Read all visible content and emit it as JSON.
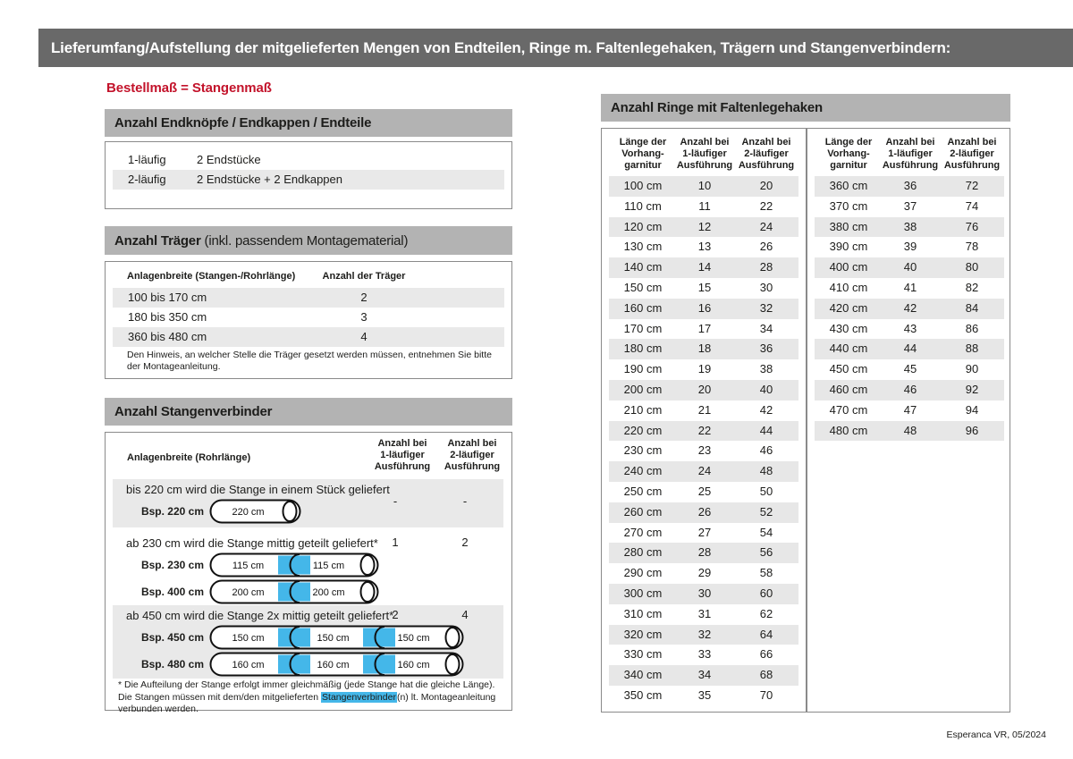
{
  "title_bar": "Lieferumfang/Aufstellung der mitgelieferten Mengen von Endteilen, Ringe m. Faltenlegehaken, Trägern und Stangenverbindern:",
  "subtitle": "Bestellmaß = Stangenmaß",
  "footer": "Esperanca VR, 05/2024",
  "colors": {
    "title_bar_bg": "#696969",
    "section_bar_bg": "#b3b3b3",
    "stripe": "#e9e9e9",
    "accent_red": "#c3132b",
    "connector_blue": "#44b7e9"
  },
  "endteile": {
    "title": "Anzahl Endknöpfe / Endkappen / Endteile",
    "rows": [
      [
        "1-läufig",
        "2 Endstücke"
      ],
      [
        "2-läufig",
        "2 Endstücke + 2 Endkappen"
      ]
    ]
  },
  "traeger": {
    "title_bold": "Anzahl Träger",
    "title_normal": " (inkl. passendem Montagematerial)",
    "col1": "Anlagenbreite (Stangen-/Rohrlänge)",
    "col2": "Anzahl der Träger",
    "rows": [
      [
        "100 bis 170 cm",
        "2"
      ],
      [
        "180 bis 350 cm",
        "3"
      ],
      [
        "360 bis 480 cm",
        "4"
      ]
    ],
    "note": "Den Hinweis, an welcher Stelle die Träger gesetzt werden müssen, entnehmen Sie bitte der Montageanleitung."
  },
  "stangenverbinder": {
    "title": "Anzahl Stangenverbinder",
    "col1": "Anlagenbreite (Rohrlänge)",
    "col_v1": "Anzahl bei\n1-läufiger\nAusführung",
    "col_v2": "Anzahl bei\n2-läufiger\nAusführung",
    "rows": [
      {
        "text": "bis 220 cm wird die Stange in einem Stück geliefert",
        "v1": "-",
        "v2": "-",
        "examples": [
          {
            "label": "Bsp. 220 cm",
            "segments": [
              "220 cm"
            ]
          }
        ]
      },
      {
        "text": "ab 230 cm wird die Stange mittig geteilt geliefert*",
        "v1": "1",
        "v2": "2",
        "examples": [
          {
            "label": "Bsp. 230 cm",
            "segments": [
              "115 cm",
              "115 cm"
            ]
          },
          {
            "label": "Bsp. 400 cm",
            "segments": [
              "200 cm",
              "200 cm"
            ]
          }
        ]
      },
      {
        "text": "ab 450 cm wird die Stange 2x mittig geteilt geliefert*",
        "v1": "2",
        "v2": "4",
        "examples": [
          {
            "label": "Bsp. 450 cm",
            "segments": [
              "150 cm",
              "150 cm",
              "150 cm"
            ]
          },
          {
            "label": "Bsp. 480 cm",
            "segments": [
              "160 cm",
              "160 cm",
              "160 cm"
            ]
          }
        ]
      }
    ],
    "footnote_pre": "* Die Aufteilung der Stange erfolgt immer gleichmäßig (jede Stange hat die gleiche Länge). Die Stangen müssen mit dem/den mitgelieferten ",
    "footnote_highlight": "Stangenverbinder",
    "footnote_post": "(n) lt. Montageanleitung verbunden werden."
  },
  "ringe": {
    "title": "Anzahl Ringe mit Faltenlegehaken",
    "col1": "Länge der\nVorhang-\ngarnitur",
    "col2": "Anzahl bei\n1-läufiger\nAusführung",
    "col3": "Anzahl bei\n2-läufiger\nAusführung",
    "table1": [
      [
        "100 cm",
        "10",
        "20"
      ],
      [
        "110 cm",
        "11",
        "22"
      ],
      [
        "120 cm",
        "12",
        "24"
      ],
      [
        "130 cm",
        "13",
        "26"
      ],
      [
        "140 cm",
        "14",
        "28"
      ],
      [
        "150 cm",
        "15",
        "30"
      ],
      [
        "160 cm",
        "16",
        "32"
      ],
      [
        "170 cm",
        "17",
        "34"
      ],
      [
        "180 cm",
        "18",
        "36"
      ],
      [
        "190 cm",
        "19",
        "38"
      ],
      [
        "200 cm",
        "20",
        "40"
      ],
      [
        "210 cm",
        "21",
        "42"
      ],
      [
        "220 cm",
        "22",
        "44"
      ],
      [
        "230 cm",
        "23",
        "46"
      ],
      [
        "240 cm",
        "24",
        "48"
      ],
      [
        "250 cm",
        "25",
        "50"
      ],
      [
        "260 cm",
        "26",
        "52"
      ],
      [
        "270 cm",
        "27",
        "54"
      ],
      [
        "280 cm",
        "28",
        "56"
      ],
      [
        "290 cm",
        "29",
        "58"
      ],
      [
        "300 cm",
        "30",
        "60"
      ],
      [
        "310 cm",
        "31",
        "62"
      ],
      [
        "320 cm",
        "32",
        "64"
      ],
      [
        "330 cm",
        "33",
        "66"
      ],
      [
        "340 cm",
        "34",
        "68"
      ],
      [
        "350 cm",
        "35",
        "70"
      ]
    ],
    "table2": [
      [
        "360 cm",
        "36",
        "72"
      ],
      [
        "370 cm",
        "37",
        "74"
      ],
      [
        "380 cm",
        "38",
        "76"
      ],
      [
        "390 cm",
        "39",
        "78"
      ],
      [
        "400 cm",
        "40",
        "80"
      ],
      [
        "410 cm",
        "41",
        "82"
      ],
      [
        "420 cm",
        "42",
        "84"
      ],
      [
        "430 cm",
        "43",
        "86"
      ],
      [
        "440 cm",
        "44",
        "88"
      ],
      [
        "450 cm",
        "45",
        "90"
      ],
      [
        "460 cm",
        "46",
        "92"
      ],
      [
        "470 cm",
        "47",
        "94"
      ],
      [
        "480 cm",
        "48",
        "96"
      ]
    ]
  }
}
